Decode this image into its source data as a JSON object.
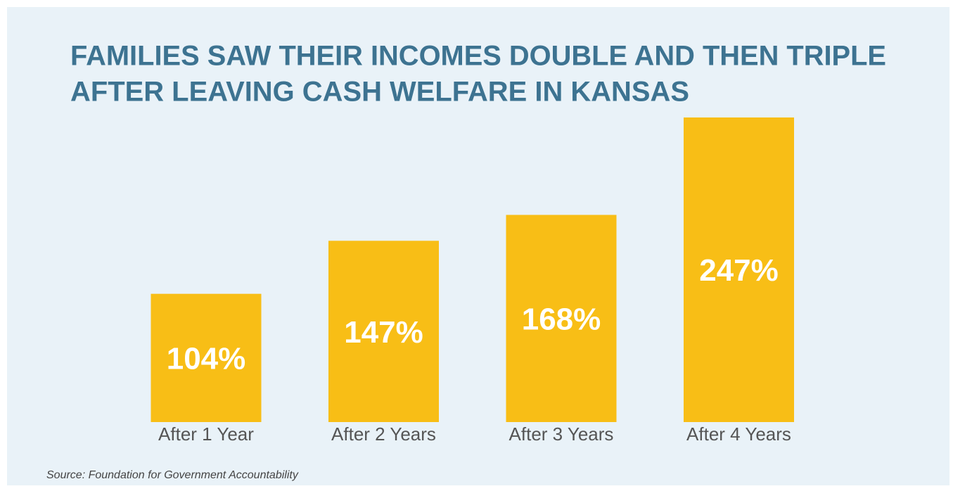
{
  "chart_data": {
    "type": "bar",
    "title": [
      "FAMILIES SAW THEIR INCOMES DOUBLE AND THEN TRIPLE",
      "AFTER LEAVING CASH WELFARE IN KANSAS"
    ],
    "categories": [
      "After 1 Year",
      "After 2 Years",
      "After 3 Years",
      "After 4 Years"
    ],
    "values": [
      104,
      147,
      168,
      247
    ],
    "value_labels": [
      "104%",
      "147%",
      "168%",
      "247%"
    ],
    "color": "#f8be16",
    "source": "Source: Foundation for Government Accountability"
  }
}
